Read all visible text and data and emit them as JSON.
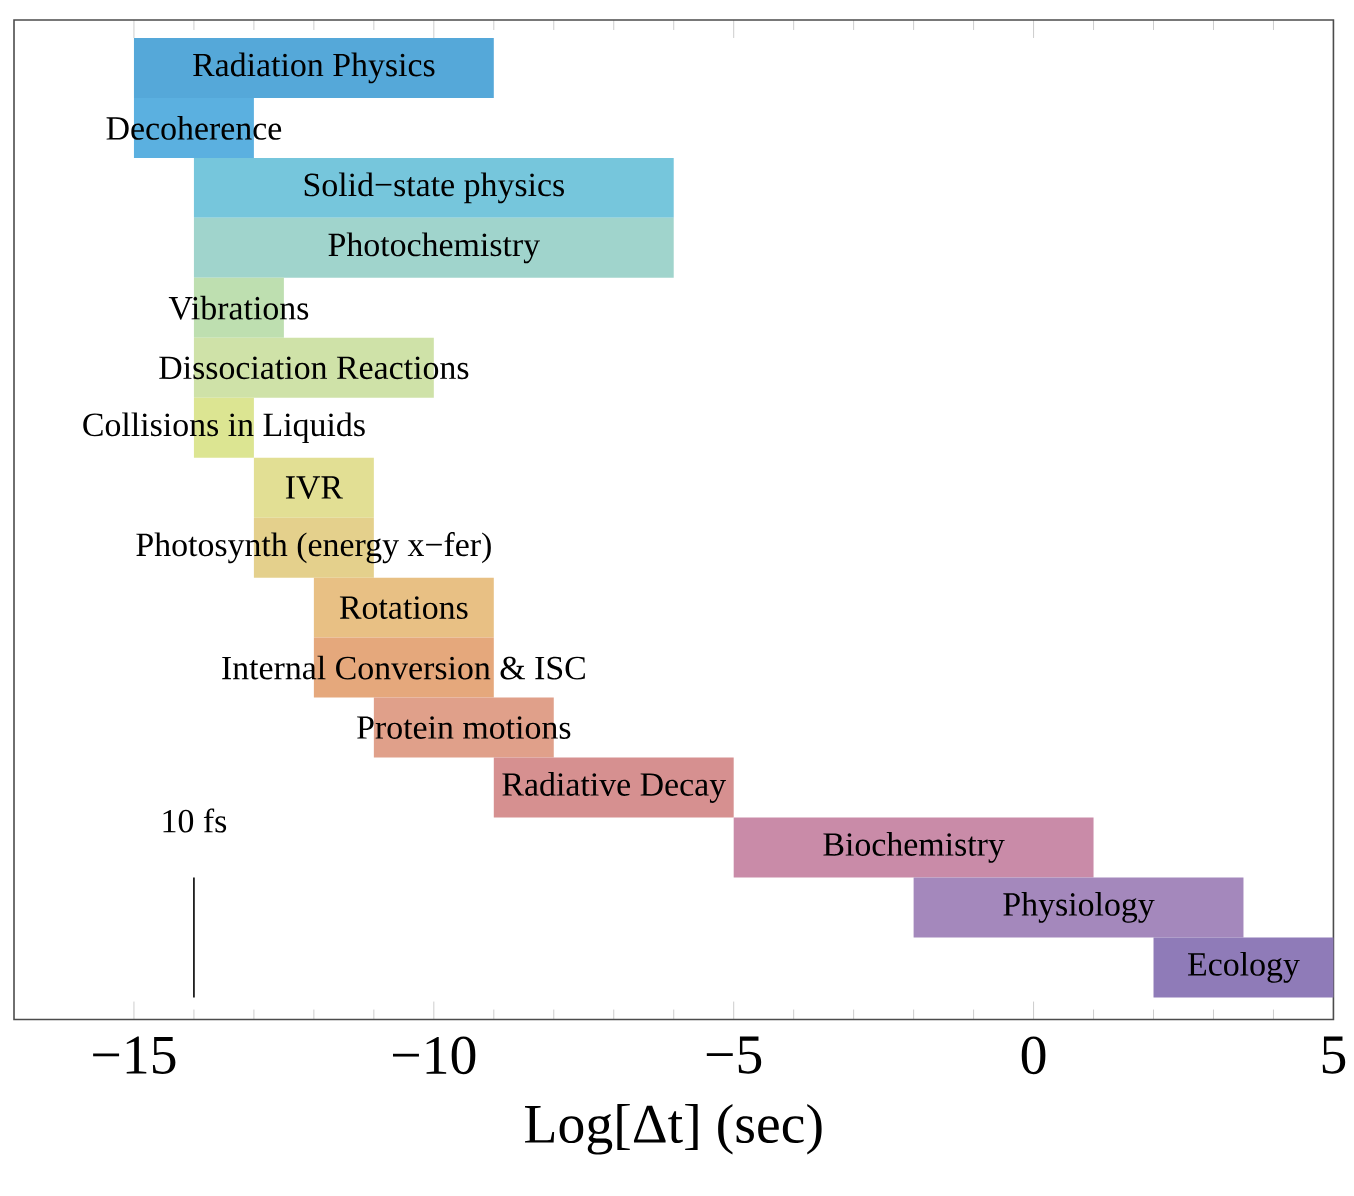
{
  "chart_data": {
    "type": "bar",
    "orientation": "horizontal",
    "xlabel": "Log[Δt] (sec)",
    "categories": [
      "Radiation Physics",
      "Decoherence",
      "Solid−state physics",
      "Photochemistry",
      "Vibrations",
      "Dissociation Reactions",
      "Collisions in Liquids",
      "IVR",
      "Photosynth (energy x−fer)",
      "Rotations",
      "Internal Conversion & ISC",
      "Protein motions",
      "Radiative Decay",
      "Biochemistry",
      "Physiology",
      "Ecology"
    ],
    "base": [
      -15,
      -15,
      -14,
      -14,
      -14,
      -14,
      -14,
      -13,
      -13,
      -12,
      -12,
      -11,
      -9,
      -5,
      -2,
      2
    ],
    "values": [
      6,
      2,
      8,
      8,
      1.5,
      4,
      1,
      2,
      2,
      3,
      3,
      3,
      4,
      6,
      5.5,
      3
    ],
    "colors": [
      "#55a8d9",
      "#5bb0e0",
      "#76c6dc",
      "#a0d4cc",
      "#bedfb0",
      "#cfe2a8",
      "#dce592",
      "#e2df94",
      "#e4d08c",
      "#e8c084",
      "#e5a87c",
      "#e0a08a",
      "#d69090",
      "#c98ba8",
      "#a488bc",
      "#8f7bb8"
    ],
    "xlim": [
      -17,
      5
    ],
    "xticks": [
      {
        "value": -15,
        "label": "−15"
      },
      {
        "value": -10,
        "label": "−10"
      },
      {
        "value": -5,
        "label": "−5"
      },
      0,
      5
    ],
    "ref_lines": [
      {
        "axis": "x",
        "value": -14,
        "label": "10 fs"
      }
    ]
  }
}
